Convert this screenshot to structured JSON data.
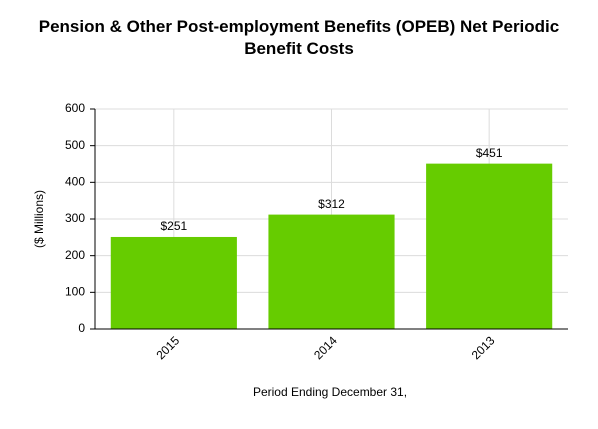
{
  "chart_data": {
    "type": "bar",
    "title": "Pension & Other Post-employment Benefits (OPEB) Net Periodic Benefit Costs",
    "x_label": "Period Ending December 31,",
    "y_label": "($ Millions)",
    "categories": [
      "2015",
      "2014",
      "2013"
    ],
    "values": [
      251,
      312,
      451
    ],
    "value_labels": [
      "$251",
      "$312",
      "$451"
    ],
    "color": "#66cc00",
    "ylim": [
      0,
      600
    ],
    "yticks": [
      0,
      100,
      200,
      300,
      400,
      500,
      600
    ],
    "grid": true
  }
}
